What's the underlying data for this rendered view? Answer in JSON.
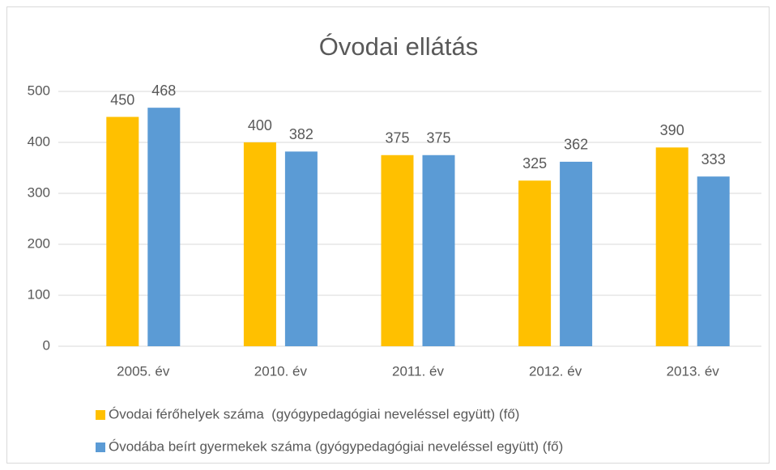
{
  "chart_data": {
    "type": "bar",
    "title": "Óvodai ellátás",
    "categories": [
      "2005. év",
      "2010. év",
      "2011. év",
      "2012. év",
      "2013. év"
    ],
    "series": [
      {
        "name": "Óvodai férőhelyek száma  (gyógypedagógiai neveléssel együtt) (fő)",
        "color": "#FFC000",
        "values": [
          450,
          400,
          375,
          325,
          390
        ]
      },
      {
        "name": "Óvodába beírt gyermekek száma (gyógypedagógiai neveléssel együtt) (fő)",
        "color": "#5B9BD5",
        "values": [
          468,
          382,
          375,
          362,
          333
        ]
      }
    ],
    "ylim": [
      0,
      500
    ],
    "yticks": [
      0,
      100,
      200,
      300,
      400,
      500
    ],
    "grid": true,
    "legend": "bottom"
  }
}
